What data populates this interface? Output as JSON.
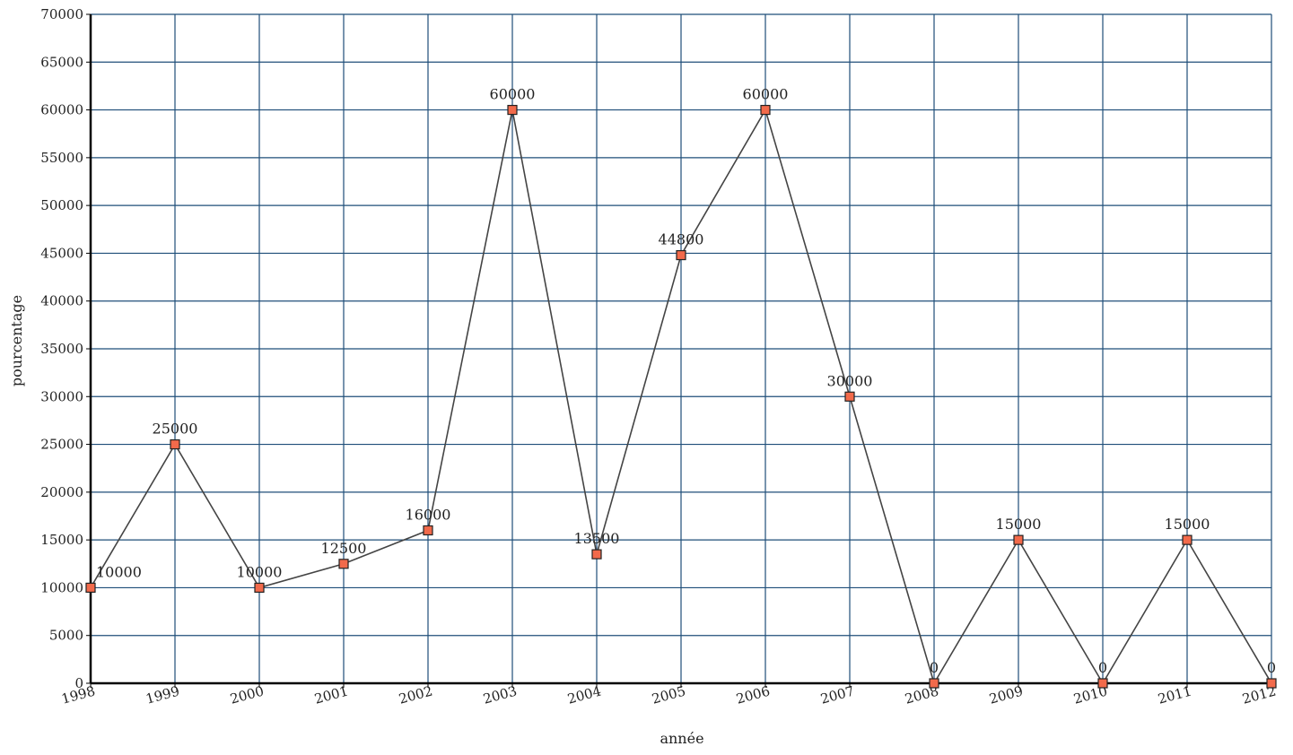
{
  "chart_data": {
    "type": "line",
    "title": "",
    "xlabel": "année",
    "ylabel": "pourcentage",
    "categories": [
      "1998",
      "1999",
      "2000",
      "2001",
      "2002",
      "2003",
      "2004",
      "2005",
      "2006",
      "2007",
      "2008",
      "2009",
      "2010",
      "2011",
      "2012"
    ],
    "series": [
      {
        "values": [
          10000,
          25000,
          10000,
          12500,
          16000,
          60000,
          13500,
          44800,
          60000,
          30000,
          0,
          15000,
          0,
          15000,
          0
        ]
      }
    ],
    "ylim": [
      0,
      70000
    ],
    "yticks": [
      0,
      5000,
      10000,
      15000,
      20000,
      25000,
      30000,
      35000,
      40000,
      45000,
      50000,
      55000,
      60000,
      65000,
      70000
    ],
    "grid": true,
    "legend": "none",
    "colors": {
      "grid": "#1f4e79",
      "line": "#444444",
      "marker_fill": "#f26a4b",
      "marker_stroke": "#222222",
      "axis": "#000000"
    }
  }
}
